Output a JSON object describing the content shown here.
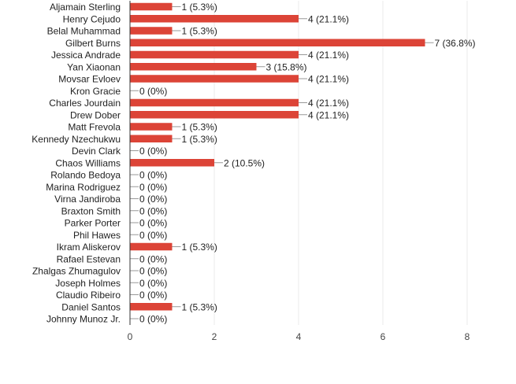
{
  "chart_data": {
    "type": "bar",
    "orientation": "horizontal",
    "title": "",
    "xlabel": "",
    "ylabel": "",
    "xlim": [
      0,
      8
    ],
    "x_ticks": [
      0,
      2,
      4,
      6,
      8
    ],
    "grid": true,
    "bar_color": "#dc4437",
    "categories": [
      "Aljamain Sterling",
      "Henry Cejudo",
      "Belal Muhammad",
      "Gilbert Burns",
      "Jessica Andrade",
      "Yan Xiaonan",
      "Movsar Evloev",
      "Kron Gracie",
      "Charles Jourdain",
      "Drew Dober",
      "Matt Frevola",
      "Kennedy Nzechukwu",
      "Devin Clark",
      "Chaos Williams",
      "Rolando Bedoya",
      "Marina Rodriguez",
      "Virna Jandiroba",
      "Braxton Smith",
      "Parker Porter",
      "Phil Hawes",
      "Ikram Aliskerov",
      "Rafael Estevan",
      "Zhalgas Zhumagulov",
      "Joseph Holmes",
      "Claudio Ribeiro",
      "Daniel Santos",
      "Johnny Munoz Jr."
    ],
    "values": [
      1,
      4,
      1,
      7,
      4,
      3,
      4,
      0,
      4,
      4,
      1,
      1,
      0,
      2,
      0,
      0,
      0,
      0,
      0,
      0,
      1,
      0,
      0,
      0,
      0,
      1,
      0
    ],
    "data_labels": [
      "1 (5.3%)",
      "4 (21.1%)",
      "1 (5.3%)",
      "7 (36.8%)",
      "4 (21.1%)",
      "3 (15.8%)",
      "4 (21.1%)",
      "0 (0%)",
      "4 (21.1%)",
      "4 (21.1%)",
      "1 (5.3%)",
      "1 (5.3%)",
      "0 (0%)",
      "2 (10.5%)",
      "0 (0%)",
      "0 (0%)",
      "0 (0%)",
      "0 (0%)",
      "0 (0%)",
      "0 (0%)",
      "1 (5.3%)",
      "0 (0%)",
      "0 (0%)",
      "0 (0%)",
      "0 (0%)",
      "1 (5.3%)",
      "0 (0%)"
    ]
  }
}
